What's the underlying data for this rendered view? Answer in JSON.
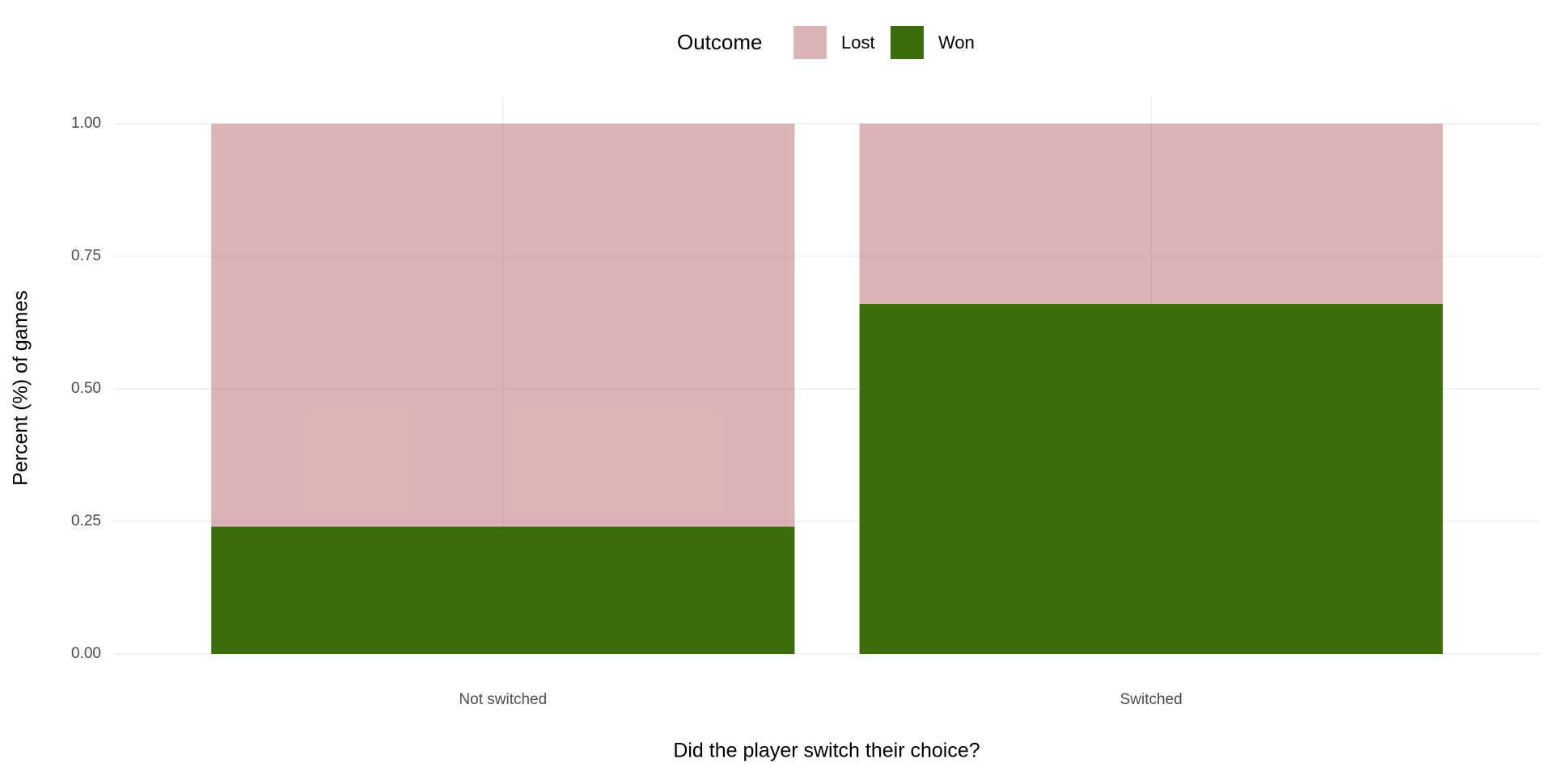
{
  "chart_data": {
    "type": "stacked_bar",
    "x_label": "Did the player switch their choice?",
    "y_label": "Percent (%) of games",
    "legend_title": "Outcome",
    "legend_position": "top",
    "categories": [
      "Not switched",
      "Switched"
    ],
    "series": [
      {
        "name": "Lost",
        "color": "#b86b6b",
        "alpha": 0.5,
        "values": [
          0.76,
          0.34
        ]
      },
      {
        "name": "Won",
        "color": "#3a6e0c",
        "alpha": 1,
        "values": [
          0.24,
          0.66
        ]
      }
    ],
    "ylim": [
      0,
      1
    ],
    "yticks": [
      {
        "value": 0,
        "label": "0.00"
      },
      0.25,
      {
        "value": 0.5,
        "label": "0.50"
      },
      0.75,
      {
        "value": 1,
        "label": "1.00"
      }
    ],
    "grid": true
  }
}
